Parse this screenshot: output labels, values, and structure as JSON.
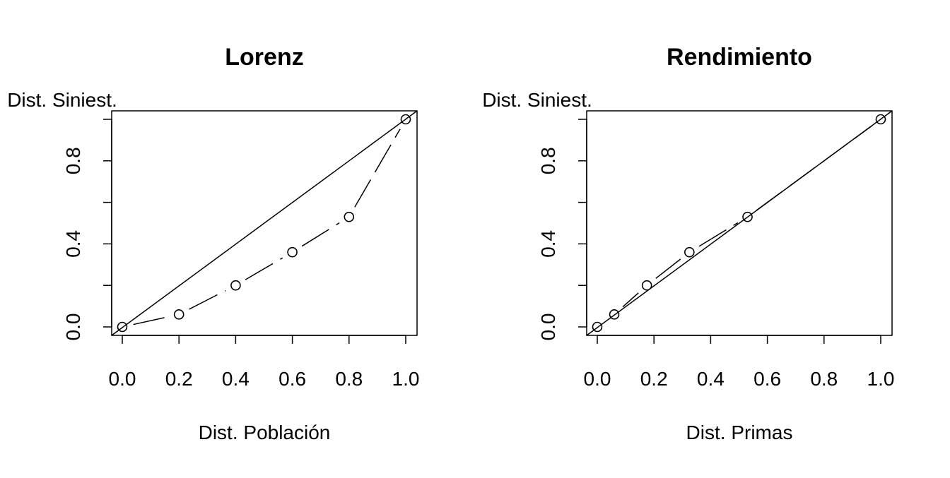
{
  "chart_data": [
    {
      "type": "line",
      "title": "Lorenz",
      "xlabel": "Dist. Población",
      "ylabel": "Dist. Siniest.",
      "xlim": [
        0,
        1
      ],
      "ylim": [
        0,
        1
      ],
      "xticks": [
        "0.0",
        "0.2",
        "0.4",
        "0.6",
        "0.8",
        "1.0"
      ],
      "yticks": [
        "0.0",
        "0.4",
        "0.8"
      ],
      "grid": false,
      "series": [
        {
          "x": [
            0.0,
            0.2,
            0.4,
            0.6,
            0.8,
            1.0
          ],
          "y": [
            0.0,
            0.06,
            0.2,
            0.36,
            0.53,
            1.0
          ],
          "style": "dashed-with-circles"
        }
      ],
      "reference_line": {
        "x": [
          0,
          1
        ],
        "y": [
          0,
          1
        ]
      }
    },
    {
      "type": "line",
      "title": "Rendimiento",
      "xlabel": "Dist. Primas",
      "ylabel": "Dist. Siniest.",
      "xlim": [
        0,
        1
      ],
      "ylim": [
        0,
        1
      ],
      "xticks": [
        "0.0",
        "0.2",
        "0.4",
        "0.6",
        "0.8",
        "1.0"
      ],
      "yticks": [
        "0.0",
        "0.4",
        "0.8"
      ],
      "grid": false,
      "series": [
        {
          "x": [
            0.0,
            0.06,
            0.175,
            0.325,
            0.53,
            1.0
          ],
          "y": [
            0.0,
            0.06,
            0.2,
            0.36,
            0.53,
            1.0
          ],
          "style": "dashed-with-circles"
        }
      ],
      "reference_line": {
        "x": [
          0,
          1
        ],
        "y": [
          0,
          1
        ]
      }
    }
  ]
}
